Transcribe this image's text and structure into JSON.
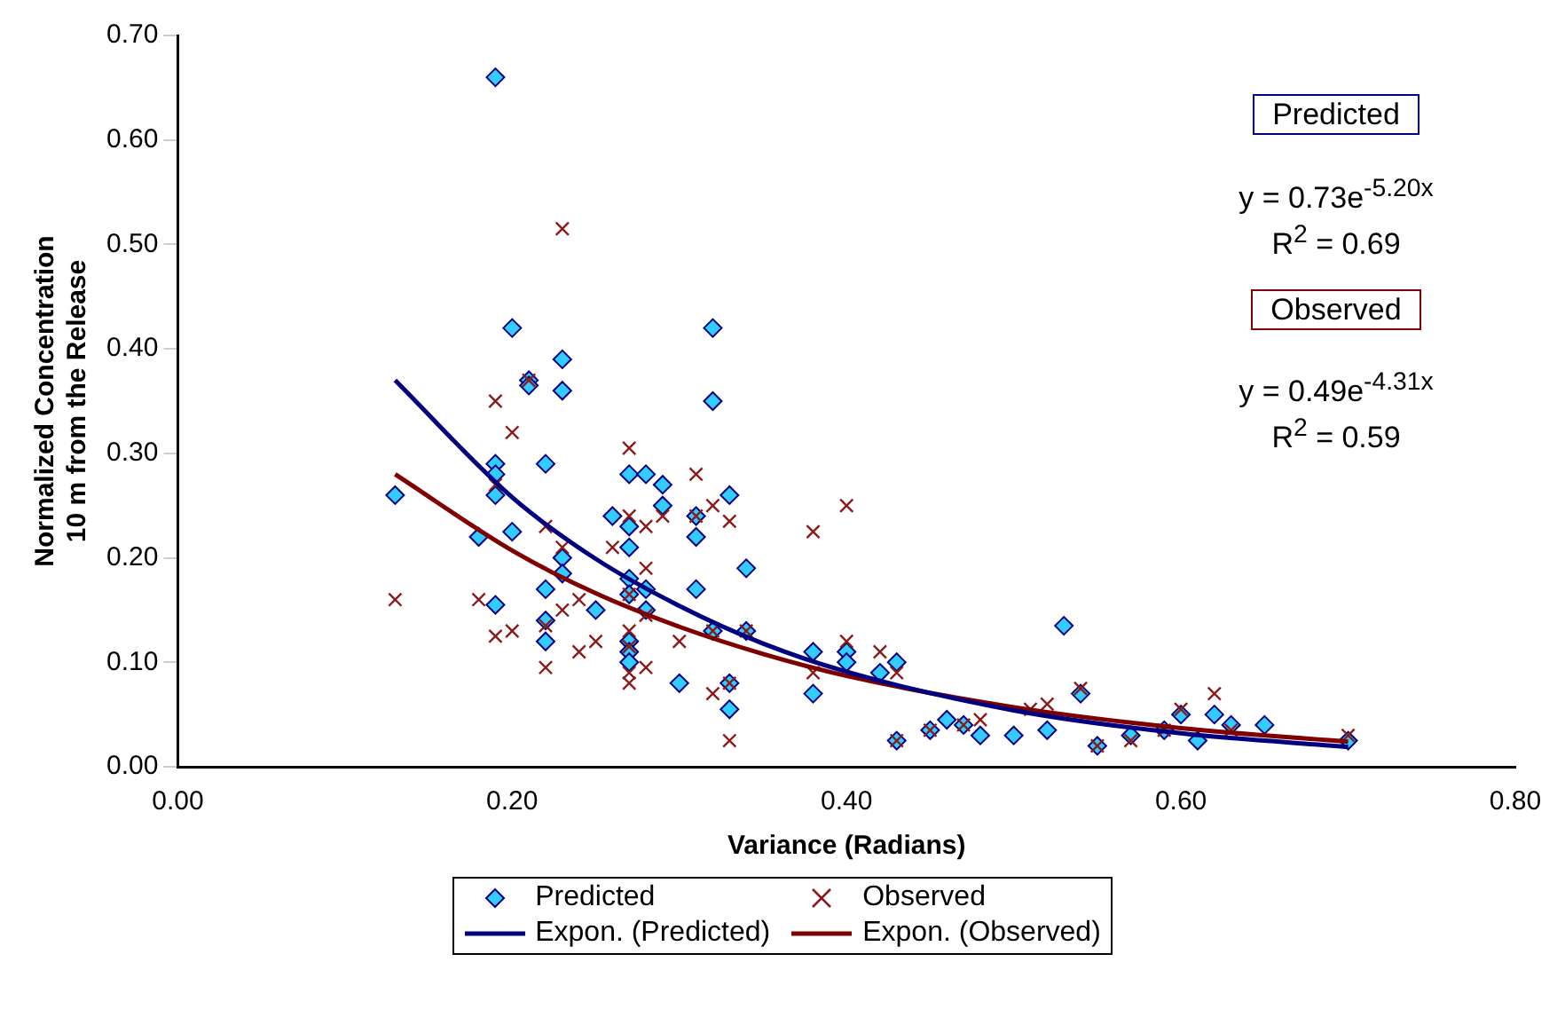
{
  "chart_data": {
    "type": "scatter",
    "xlabel": "Variance (Radians)",
    "ylabel": "Normalized Concentration\n10 m from the Release",
    "xlim": [
      0,
      0.8
    ],
    "ylim": [
      0,
      0.7
    ],
    "xticks": [
      {
        "value": 0,
        "label": "0.00"
      },
      {
        "value": 0.2,
        "label": "0.20"
      },
      {
        "value": 0.4,
        "label": "0.40"
      },
      {
        "value": 0.6,
        "label": "0.60"
      },
      {
        "value": 0.8,
        "label": "0.80"
      }
    ],
    "yticks": [
      {
        "value": 0,
        "label": "0.00"
      },
      {
        "value": 0.1,
        "label": "0.10"
      },
      {
        "value": 0.2,
        "label": "0.20"
      },
      {
        "value": 0.3,
        "label": "0.30"
      },
      {
        "value": 0.4,
        "label": "0.40"
      },
      {
        "value": 0.5,
        "label": "0.50"
      },
      {
        "value": 0.6,
        "label": "0.60"
      },
      {
        "value": 0.7,
        "label": "0.70"
      }
    ],
    "grid": false,
    "legend": "bottom",
    "annotations": [
      "Predicted",
      "y = 0.73e$^{-5.20x}$",
      "R$^{2}$ = 0.69",
      "Observed",
      "y = 0.49e$^{-4.31x}$",
      "R$^{2}$ = 0.59"
    ],
    "series": [
      {
        "name": "Predicted",
        "marker": "diamond",
        "color": "#33ccff",
        "x": [
          0.13,
          0.18,
          0.19,
          0.19,
          0.19,
          0.19,
          0.19,
          0.2,
          0.2,
          0.21,
          0.21,
          0.22,
          0.22,
          0.22,
          0.22,
          0.23,
          0.23,
          0.23,
          0.23,
          0.25,
          0.26,
          0.27,
          0.27,
          0.27,
          0.27,
          0.27,
          0.27,
          0.27,
          0.27,
          0.28,
          0.28,
          0.28,
          0.29,
          0.29,
          0.3,
          0.31,
          0.31,
          0.31,
          0.32,
          0.32,
          0.32,
          0.33,
          0.33,
          0.33,
          0.34,
          0.34,
          0.38,
          0.38,
          0.4,
          0.4,
          0.42,
          0.43,
          0.43,
          0.45,
          0.46,
          0.47,
          0.48,
          0.5,
          0.52,
          0.53,
          0.54,
          0.55,
          0.57,
          0.59,
          0.6,
          0.61,
          0.62,
          0.63,
          0.65,
          0.7
        ],
        "values": [
          0.26,
          0.22,
          0.66,
          0.29,
          0.28,
          0.26,
          0.155,
          0.42,
          0.225,
          0.37,
          0.365,
          0.29,
          0.17,
          0.14,
          0.12,
          0.39,
          0.36,
          0.2,
          0.185,
          0.15,
          0.24,
          0.28,
          0.23,
          0.21,
          0.18,
          0.165,
          0.12,
          0.11,
          0.1,
          0.28,
          0.17,
          0.15,
          0.27,
          0.25,
          0.08,
          0.24,
          0.22,
          0.17,
          0.42,
          0.35,
          0.13,
          0.26,
          0.08,
          0.055,
          0.19,
          0.13,
          0.11,
          0.07,
          0.11,
          0.1,
          0.09,
          0.1,
          0.025,
          0.035,
          0.045,
          0.04,
          0.03,
          0.03,
          0.035,
          0.135,
          0.07,
          0.02,
          0.03,
          0.035,
          0.05,
          0.025,
          0.05,
          0.04,
          0.04,
          0.025
        ]
      },
      {
        "name": "Observed",
        "marker": "cross",
        "color": "#8b1a1a",
        "x": [
          0.13,
          0.18,
          0.19,
          0.19,
          0.19,
          0.2,
          0.2,
          0.21,
          0.22,
          0.22,
          0.22,
          0.23,
          0.23,
          0.23,
          0.24,
          0.24,
          0.25,
          0.26,
          0.27,
          0.27,
          0.27,
          0.27,
          0.27,
          0.27,
          0.27,
          0.28,
          0.28,
          0.28,
          0.28,
          0.29,
          0.3,
          0.31,
          0.31,
          0.32,
          0.32,
          0.32,
          0.33,
          0.33,
          0.33,
          0.34,
          0.38,
          0.38,
          0.4,
          0.4,
          0.42,
          0.43,
          0.43,
          0.45,
          0.47,
          0.48,
          0.51,
          0.52,
          0.54,
          0.55,
          0.57,
          0.59,
          0.6,
          0.62,
          0.63,
          0.7
        ],
        "values": [
          0.16,
          0.16,
          0.35,
          0.27,
          0.125,
          0.32,
          0.13,
          0.37,
          0.23,
          0.135,
          0.095,
          0.515,
          0.21,
          0.15,
          0.16,
          0.11,
          0.12,
          0.21,
          0.305,
          0.24,
          0.165,
          0.13,
          0.115,
          0.09,
          0.08,
          0.23,
          0.19,
          0.145,
          0.095,
          0.24,
          0.12,
          0.28,
          0.24,
          0.25,
          0.13,
          0.07,
          0.235,
          0.08,
          0.025,
          0.13,
          0.225,
          0.09,
          0.25,
          0.12,
          0.11,
          0.09,
          0.025,
          0.035,
          0.04,
          0.045,
          0.055,
          0.06,
          0.075,
          0.02,
          0.025,
          0.035,
          0.055,
          0.07,
          0.035,
          0.03
        ]
      },
      {
        "name": "Expon. (Predicted)",
        "type": "line",
        "marker": "none",
        "color": "#000080",
        "x": [
          0.13,
          0.2,
          0.25,
          0.3,
          0.35,
          0.4,
          0.5,
          0.6,
          0.7
        ],
        "values": [
          0.37,
          0.258,
          0.199,
          0.154,
          0.118,
          0.091,
          0.054,
          0.032,
          0.019
        ]
      },
      {
        "name": "Expon. (Observed)",
        "type": "line",
        "marker": "none",
        "color": "#800000",
        "x": [
          0.13,
          0.2,
          0.25,
          0.3,
          0.35,
          0.4,
          0.5,
          0.6,
          0.7
        ],
        "values": [
          0.28,
          0.207,
          0.166,
          0.134,
          0.108,
          0.087,
          0.057,
          0.037,
          0.024
        ]
      }
    ]
  }
}
